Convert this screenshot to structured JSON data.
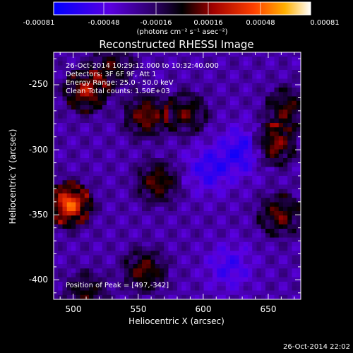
{
  "colorbar": {
    "tick_labels": [
      "-0.00081",
      "-0.00048",
      "-0.00016",
      "0.00016",
      "0.00048",
      "0.00081"
    ],
    "units_label": "(photons cm⁻² s⁻¹ asec⁻²)"
  },
  "plot": {
    "title": "Reconstructed RHESSI Image",
    "annotations": [
      "26-Oct-2014 10:29:12.000 to 10:32:40.000",
      "Detectors: 3F 6F 9F, Att 1",
      "Energy Range: 25.0 - 50.0 keV",
      "Clean    Total counts: 1.50E+03"
    ],
    "peak_label": "Position of Peak = [497,-342]",
    "footer_timestamp": "26-Oct-2014 22:02"
  },
  "chart_data": {
    "type": "heatmap",
    "title": "Reconstructed RHESSI Image",
    "xlabel": "Heliocentric X (arcsec)",
    "ylabel": "Heliocentric Y (arcsec)",
    "xlim": [
      485,
      675
    ],
    "ylim": [
      -415,
      -225
    ],
    "x_ticks": [
      500,
      550,
      600,
      650
    ],
    "y_ticks": [
      -250,
      -300,
      -350,
      -400
    ],
    "colorbar_range": [
      -0.00081,
      0.00081
    ],
    "colormap": "rhessi-thermal",
    "colors": {
      "low": "#0000ff",
      "mid_low": "#7a00ff",
      "zero": "#000000",
      "mid_high": "#ff0000",
      "high": "#ffff00",
      "max": "#ffffff",
      "background_field": "#5a24a8"
    },
    "peak": {
      "x": 497,
      "y": -342
    },
    "sources": [
      {
        "x": 497,
        "y": -342,
        "value": 0.00081
      },
      {
        "x": 510,
        "y": -255,
        "value": 0.00055
      },
      {
        "x": 556,
        "y": -274,
        "value": 0.0005
      },
      {
        "x": 587,
        "y": -272,
        "value": 0.0004
      },
      {
        "x": 654,
        "y": -296,
        "value": 0.00055
      },
      {
        "x": 664,
        "y": -268,
        "value": 0.0004
      },
      {
        "x": 565,
        "y": -325,
        "value": 0.00045
      },
      {
        "x": 659,
        "y": -350,
        "value": 0.00045
      },
      {
        "x": 555,
        "y": -393,
        "value": 0.00045
      },
      {
        "x": 510,
        "y": -410,
        "value": 0.00035
      },
      {
        "x": 530,
        "y": -236,
        "value": 0.00035
      }
    ],
    "negative_sources": [
      {
        "x": 632,
        "y": -300,
        "value": -0.00035
      },
      {
        "x": 605,
        "y": -315,
        "value": -0.0003
      },
      {
        "x": 620,
        "y": -390,
        "value": -0.00025
      }
    ]
  }
}
